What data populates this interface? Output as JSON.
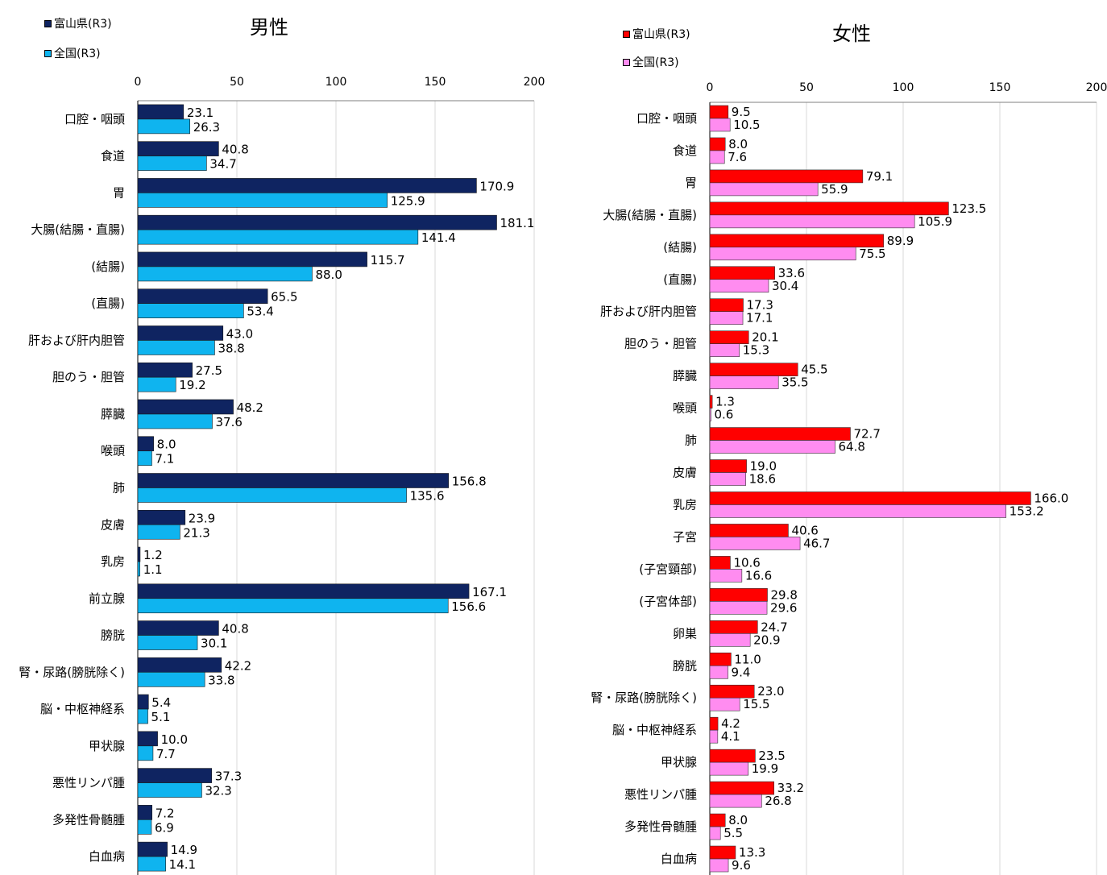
{
  "chart_data": [
    {
      "type": "bar",
      "orientation": "horizontal",
      "title": "男性",
      "xlim": [
        0,
        200
      ],
      "xticks": [
        "0",
        "50",
        "100",
        "150",
        "200"
      ],
      "grid": true,
      "legend_position": "top-left",
      "categories": [
        "口腔・咽頭",
        "食道",
        "胃",
        "大腸(結腸・直腸)",
        "(結腸)",
        "(直腸)",
        "肝および肝内胆管",
        "胆のう・胆管",
        "膵臓",
        "喉頭",
        "肺",
        "皮膚",
        "乳房",
        "前立腺",
        "膀胱",
        "腎・尿路(膀胱除く)",
        "脳・中枢神経系",
        "甲状腺",
        "悪性リンパ腫",
        "多発性骨髄腫",
        "白血病"
      ],
      "series": [
        {
          "name": "富山県(R3)",
          "color": "#0f2461",
          "values": [
            23.1,
            40.8,
            170.9,
            181.1,
            115.7,
            65.5,
            43.0,
            27.5,
            48.2,
            8.0,
            156.8,
            23.9,
            1.2,
            167.1,
            40.8,
            42.2,
            5.4,
            10.0,
            37.3,
            7.2,
            14.9
          ],
          "labels": [
            "23.1",
            "40.8",
            "170.9",
            "181.1",
            "115.7",
            "65.5",
            "43.0",
            "27.5",
            "48.2",
            "8.0",
            "156.8",
            "23.9",
            "1.2",
            "167.1",
            "40.8",
            "42.2",
            "5.4",
            "10.0",
            "37.3",
            "7.2",
            "14.9"
          ]
        },
        {
          "name": "全国(R3)",
          "color": "#0fb4ef",
          "values": [
            26.3,
            34.7,
            125.9,
            141.4,
            88.0,
            53.4,
            38.8,
            19.2,
            37.6,
            7.1,
            135.6,
            21.3,
            1.1,
            156.6,
            30.1,
            33.8,
            5.1,
            7.7,
            32.3,
            6.9,
            14.1
          ],
          "labels": [
            "26.3",
            "34.7",
            "125.9",
            "141.4",
            "88.0",
            "53.4",
            "38.8",
            "19.2",
            "37.6",
            "7.1",
            "135.6",
            "21.3",
            "1.1",
            "156.6",
            "30.1",
            "33.8",
            "5.1",
            "7.7",
            "32.3",
            "6.9",
            "14.1"
          ]
        }
      ]
    },
    {
      "type": "bar",
      "orientation": "horizontal",
      "title": "女性",
      "xlim": [
        0,
        200
      ],
      "xticks": [
        "0",
        "50",
        "100",
        "150",
        "200"
      ],
      "grid": true,
      "legend_position": "top-left",
      "categories": [
        "口腔・咽頭",
        "食道",
        "胃",
        "大腸(結腸・直腸)",
        "(結腸)",
        "(直腸)",
        "肝および肝内胆管",
        "胆のう・胆管",
        "膵臓",
        "喉頭",
        "肺",
        "皮膚",
        "乳房",
        "子宮",
        "(子宮頸部)",
        "(子宮体部)",
        "卵巣",
        "膀胱",
        "腎・尿路(膀胱除く)",
        "脳・中枢神経系",
        "甲状腺",
        "悪性リンパ腫",
        "多発性骨髄腫",
        "白血病"
      ],
      "series": [
        {
          "name": "富山県(R3)",
          "color": "#ff0000",
          "values": [
            9.5,
            8.0,
            79.1,
            123.5,
            89.9,
            33.6,
            17.3,
            20.1,
            45.5,
            1.3,
            72.7,
            19.0,
            166.0,
            40.6,
            10.6,
            29.8,
            24.7,
            11.0,
            23.0,
            4.2,
            23.5,
            33.2,
            8.0,
            13.3
          ],
          "labels": [
            "9.5",
            "8.0",
            "79.1",
            "123.5",
            "89.9",
            "33.6",
            "17.3",
            "20.1",
            "45.5",
            "1.3",
            "72.7",
            "19.0",
            "166.0",
            "40.6",
            "10.6",
            "29.8",
            "24.7",
            "11.0",
            "23.0",
            "4.2",
            "23.5",
            "33.2",
            "8.0",
            "13.3"
          ]
        },
        {
          "name": "全国(R3)",
          "color": "#ff8cf0",
          "values": [
            10.5,
            7.6,
            55.9,
            105.9,
            75.5,
            30.4,
            17.1,
            15.3,
            35.5,
            0.6,
            64.8,
            18.6,
            153.2,
            46.7,
            16.6,
            29.6,
            20.9,
            9.4,
            15.5,
            4.1,
            19.9,
            26.8,
            5.5,
            9.6
          ],
          "labels": [
            "10.5",
            "7.6",
            "55.9",
            "105.9",
            "75.5",
            "30.4",
            "17.1",
            "15.3",
            "35.5",
            "0.6",
            "64.8",
            "18.6",
            "153.2",
            "46.7",
            "16.6",
            "29.6",
            "20.9",
            "9.4",
            "15.5",
            "4.1",
            "19.9",
            "26.8",
            "5.5",
            "9.6"
          ]
        }
      ]
    }
  ]
}
